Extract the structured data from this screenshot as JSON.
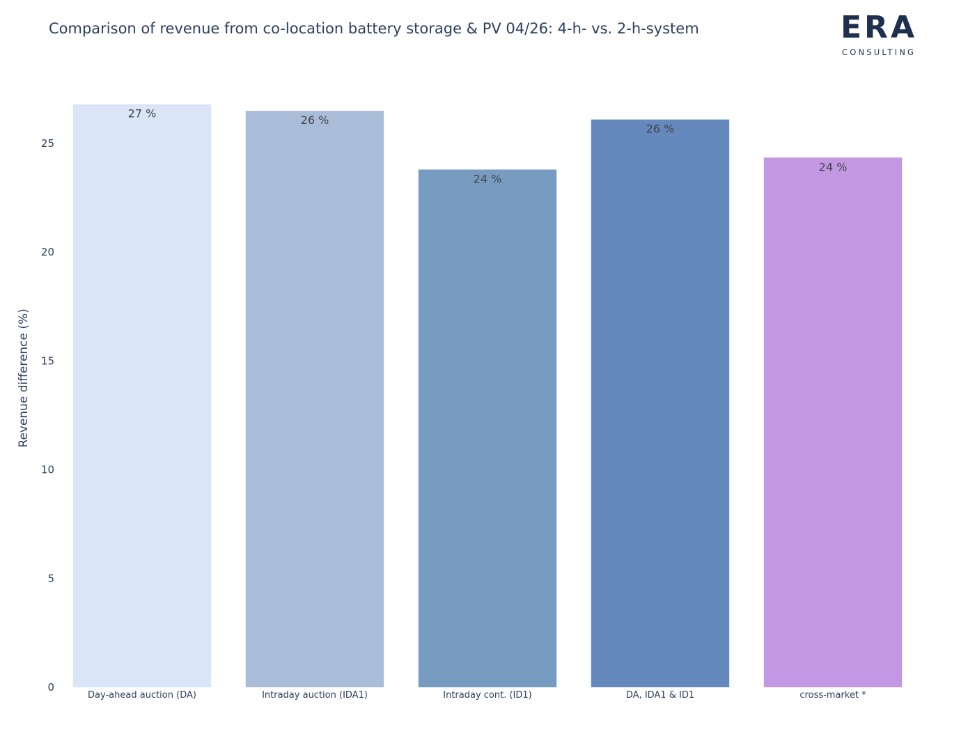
{
  "chart_data": {
    "type": "bar",
    "title": "Comparison of revenue from co-location battery storage & PV 04/26: 4-h- vs. 2-h-system",
    "ylabel": "Revenue difference (%)",
    "xlabel": "",
    "ylim": [
      0,
      27.4
    ],
    "yticks": [
      0,
      5,
      10,
      15,
      20,
      25
    ],
    "grid": false,
    "categories": [
      "Day-ahead auction (DA)",
      "Intraday auction (IDA1)",
      "Intraday cont. (ID1)",
      "DA, IDA1 & ID1",
      "cross-market *"
    ],
    "values": [
      26.8,
      26.5,
      23.8,
      26.1,
      24.35
    ],
    "labels": [
      "27 %",
      "26 %",
      "24 %",
      "26 %",
      "24 %"
    ],
    "colors": [
      "#dae6f7",
      "#aabdd8",
      "#789bc2",
      "#6588bd",
      "#c298e3"
    ]
  },
  "logo": {
    "word": "ERA",
    "sub": "CONSULTING",
    "color": "#1f2f4f"
  }
}
